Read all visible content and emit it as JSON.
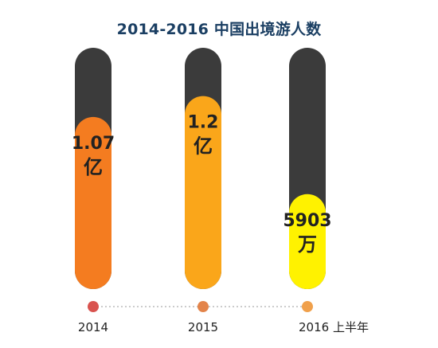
{
  "chart_data": {
    "type": "bar",
    "title": "2014-2016 中国出境游人数",
    "categories": [
      "2014",
      "2015",
      "2016 上半年"
    ],
    "values": [
      1.07,
      1.2,
      0.5903
    ],
    "unit": "亿",
    "value_labels": [
      {
        "number": "1.07",
        "unit": "亿"
      },
      {
        "number": "1.2",
        "unit": "亿"
      },
      {
        "number": "5903",
        "unit": "万"
      }
    ],
    "ylim": [
      0,
      1.5
    ],
    "colors": {
      "track": "#3b3b3b",
      "bars": [
        "#f47c20",
        "#faa61a",
        "#fff200"
      ],
      "dots": [
        "#d9534f",
        "#e3844a",
        "#f0a04b"
      ],
      "title": "#1b3f63",
      "timeline": "#bbbbbb",
      "label_text": "#222222"
    }
  }
}
